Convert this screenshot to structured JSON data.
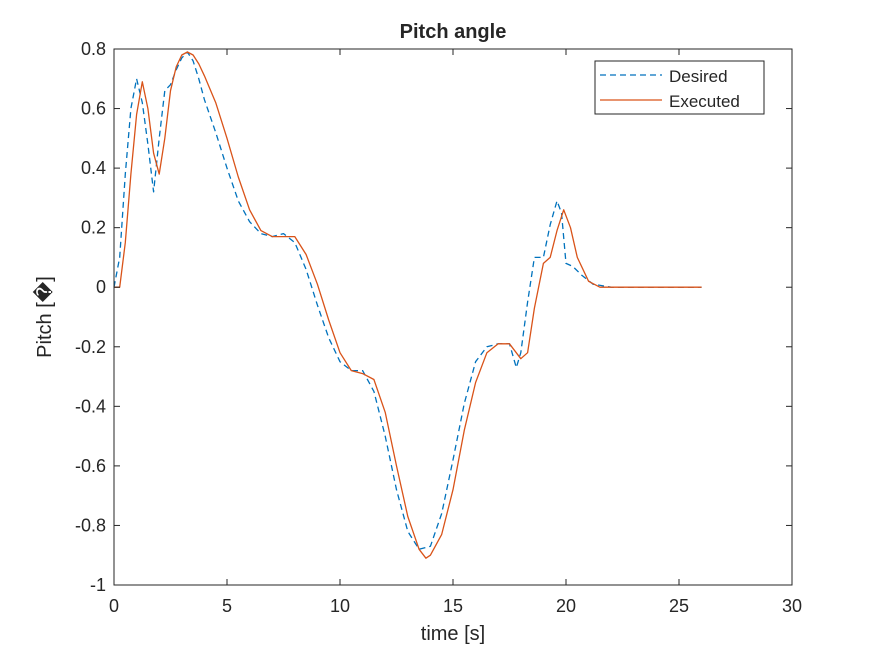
{
  "chart_data": {
    "type": "line",
    "title": "Pitch angle",
    "xlabel": "time [s]",
    "ylabel": "Pitch [�]",
    "xlim": [
      0,
      30
    ],
    "ylim": [
      -1,
      0.8
    ],
    "xticks": [
      0,
      5,
      10,
      15,
      20,
      25,
      30
    ],
    "xtick_labels": [
      "0",
      "5",
      "10",
      "15",
      "20",
      "25",
      "30"
    ],
    "yticks": [
      -1,
      -0.8,
      -0.6,
      -0.4,
      -0.2,
      0,
      0.2,
      0.4,
      0.6,
      0.8
    ],
    "ytick_labels": [
      "-1",
      "-0.8",
      "-0.6",
      "-0.4",
      "-0.2",
      "0",
      "0.2",
      "0.4",
      "0.6",
      "0.8"
    ],
    "grid": false,
    "legend_position": "top-right",
    "series": [
      {
        "name": "Desired",
        "color": "#0072BD",
        "style": "dashed",
        "x": [
          0,
          0.25,
          0.5,
          0.75,
          1.0,
          1.25,
          1.5,
          1.75,
          2.0,
          2.25,
          2.5,
          2.75,
          3.0,
          3.25,
          3.5,
          3.75,
          4.0,
          4.5,
          5.0,
          5.5,
          6.0,
          6.5,
          7.0,
          7.5,
          8.0,
          8.5,
          9.0,
          9.5,
          10.0,
          10.5,
          11.0,
          11.5,
          12.0,
          12.5,
          13.0,
          13.5,
          14.0,
          14.5,
          15.0,
          15.5,
          16.0,
          16.5,
          17.0,
          17.5,
          17.8,
          18.0,
          18.3,
          18.6,
          19.0,
          19.3,
          19.6,
          19.8,
          20.0,
          20.3,
          20.7,
          21.2,
          22.0,
          23.0,
          24.0,
          25.0,
          26.0
        ],
        "y": [
          0.0,
          0.1,
          0.38,
          0.6,
          0.7,
          0.62,
          0.48,
          0.32,
          0.5,
          0.66,
          0.68,
          0.73,
          0.77,
          0.79,
          0.76,
          0.7,
          0.63,
          0.52,
          0.4,
          0.29,
          0.22,
          0.18,
          0.17,
          0.18,
          0.15,
          0.06,
          -0.06,
          -0.17,
          -0.25,
          -0.28,
          -0.28,
          -0.35,
          -0.5,
          -0.68,
          -0.82,
          -0.88,
          -0.87,
          -0.76,
          -0.58,
          -0.39,
          -0.25,
          -0.2,
          -0.19,
          -0.19,
          -0.27,
          -0.22,
          -0.05,
          0.1,
          0.1,
          0.21,
          0.29,
          0.25,
          0.08,
          0.07,
          0.04,
          0.01,
          0.0,
          0.0,
          0.0,
          0.0,
          0.0
        ]
      },
      {
        "name": "Executed",
        "color": "#D95319",
        "style": "solid",
        "x": [
          0,
          0.25,
          0.5,
          0.75,
          1.0,
          1.25,
          1.5,
          1.75,
          2.0,
          2.25,
          2.5,
          2.75,
          3.0,
          3.25,
          3.5,
          3.75,
          4.0,
          4.5,
          5.0,
          5.5,
          6.0,
          6.5,
          7.0,
          7.5,
          8.0,
          8.5,
          9.0,
          9.5,
          10.0,
          10.5,
          11.0,
          11.5,
          12.0,
          12.5,
          13.0,
          13.5,
          13.8,
          14.0,
          14.5,
          15.0,
          15.5,
          16.0,
          16.5,
          17.0,
          17.5,
          18.0,
          18.3,
          18.6,
          19.0,
          19.3,
          19.6,
          19.9,
          20.2,
          20.5,
          21.0,
          21.5,
          22.0,
          23.0,
          24.0,
          25.0,
          26.0
        ],
        "y": [
          0.0,
          0.0,
          0.15,
          0.38,
          0.58,
          0.69,
          0.6,
          0.45,
          0.38,
          0.5,
          0.66,
          0.74,
          0.78,
          0.79,
          0.78,
          0.75,
          0.71,
          0.62,
          0.5,
          0.37,
          0.26,
          0.19,
          0.17,
          0.17,
          0.17,
          0.11,
          0.01,
          -0.11,
          -0.22,
          -0.28,
          -0.29,
          -0.31,
          -0.42,
          -0.6,
          -0.77,
          -0.88,
          -0.91,
          -0.9,
          -0.83,
          -0.68,
          -0.48,
          -0.32,
          -0.22,
          -0.19,
          -0.19,
          -0.24,
          -0.22,
          -0.07,
          0.08,
          0.1,
          0.19,
          0.26,
          0.2,
          0.1,
          0.02,
          0.0,
          0.0,
          0.0,
          0.0,
          0.0,
          0.0
        ]
      }
    ]
  }
}
